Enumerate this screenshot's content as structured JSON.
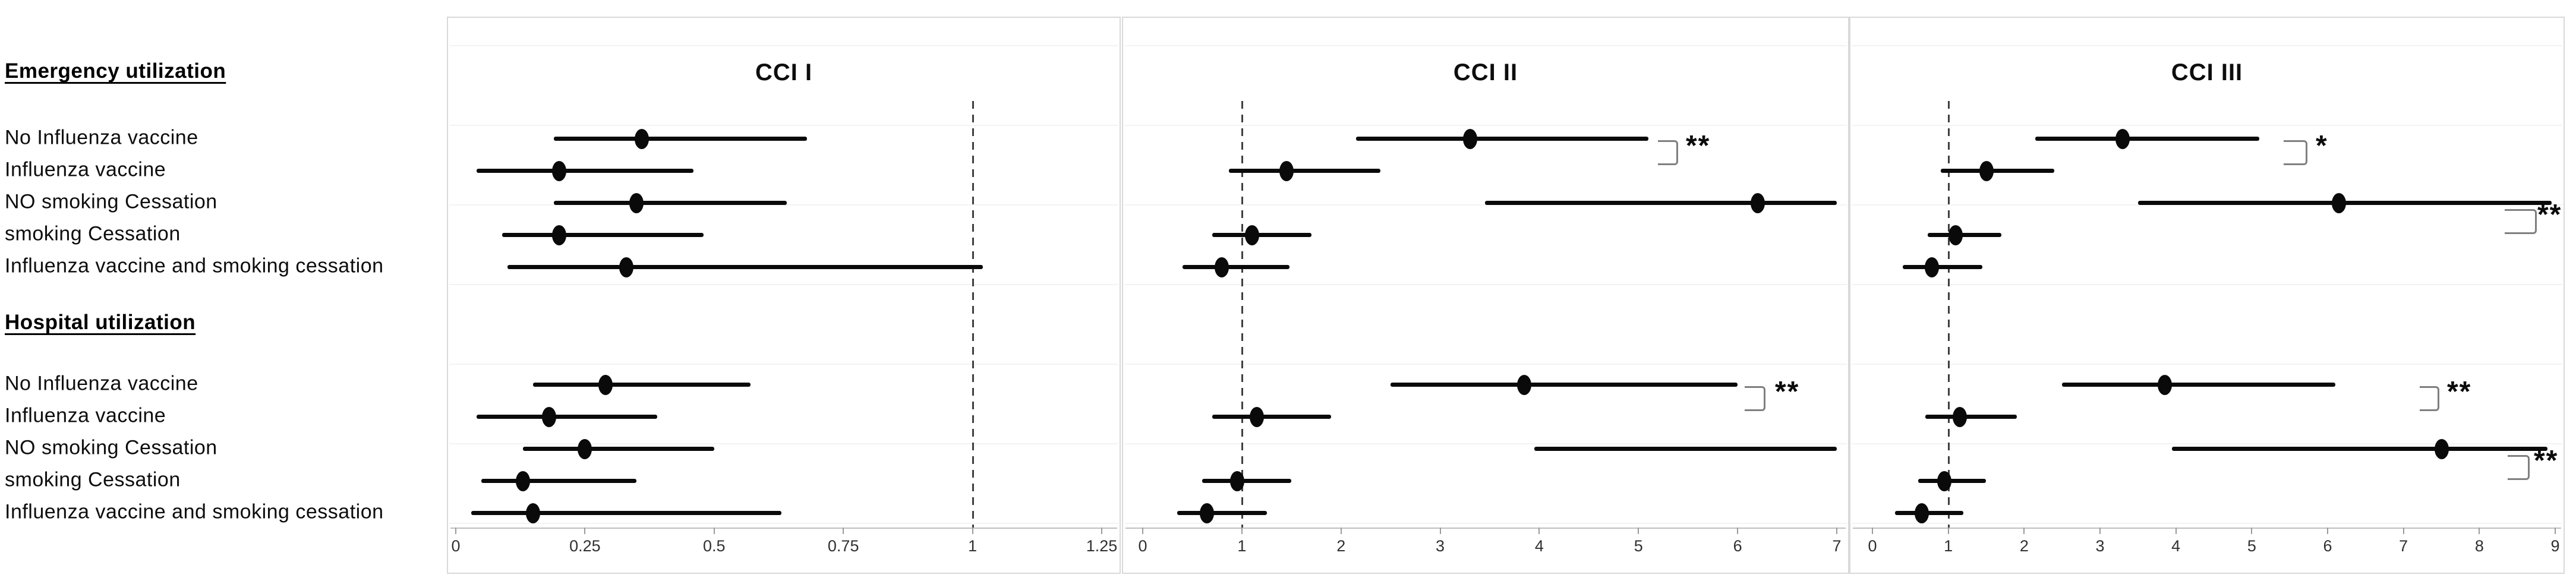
{
  "figure": {
    "section_headers": {
      "emergency": "Emergency utilization",
      "hospital": "Hospital utilization"
    }
  },
  "chart_data": [
    {
      "type": "forest",
      "title": "CCI I",
      "xlabel": "",
      "xlim": [
        0,
        1.25
      ],
      "reference_line": 1,
      "ticks": [
        {
          "v": 0,
          "label": "0"
        },
        {
          "v": 0.25,
          "label": "0.25"
        },
        {
          "v": 0.5,
          "label": "0.5"
        },
        {
          "v": 0.75,
          "label": "0.75"
        },
        {
          "v": 1,
          "label": "1"
        },
        {
          "v": 1.25,
          "label": "1.25"
        }
      ],
      "sections": [
        {
          "name": "Emergency utilization",
          "rows": [
            {
              "label": "No Influenza vaccine",
              "est": 0.36,
              "lo": 0.19,
              "hi": 0.68,
              "sig": null
            },
            {
              "label": "Influenza vaccine",
              "est": 0.2,
              "lo": 0.04,
              "hi": 0.46,
              "sig": null
            },
            {
              "label": "NO smoking Cessation",
              "est": 0.35,
              "lo": 0.19,
              "hi": 0.64,
              "sig": null
            },
            {
              "label": "smoking Cessation",
              "est": 0.2,
              "lo": 0.09,
              "hi": 0.48,
              "sig": null
            },
            {
              "label": "Influenza vaccine and smoking cessation",
              "est": 0.33,
              "lo": 0.1,
              "hi": 1.02,
              "sig": null
            }
          ]
        },
        {
          "name": "Hospital utilization",
          "rows": [
            {
              "label": "No Influenza vaccine",
              "est": 0.29,
              "lo": 0.15,
              "hi": 0.57,
              "sig": null
            },
            {
              "label": "Influenza vaccine",
              "est": 0.18,
              "lo": 0.04,
              "hi": 0.39,
              "sig": null
            },
            {
              "label": "NO smoking Cessation",
              "est": 0.25,
              "lo": 0.13,
              "hi": 0.5,
              "sig": null
            },
            {
              "label": "smoking Cessation",
              "est": 0.13,
              "lo": 0.05,
              "hi": 0.35,
              "sig": null
            },
            {
              "label": "Influenza vaccine and smoking cessation",
              "est": 0.15,
              "lo": 0.03,
              "hi": 0.63,
              "sig": null
            }
          ]
        }
      ]
    },
    {
      "type": "forest",
      "title": "CCI II",
      "xlabel": "",
      "xlim": [
        0,
        7
      ],
      "reference_line": 1,
      "ticks": [
        {
          "v": 0,
          "label": "0"
        },
        {
          "v": 1,
          "label": "1"
        },
        {
          "v": 2,
          "label": "2"
        },
        {
          "v": 3,
          "label": "3"
        },
        {
          "v": 4,
          "label": "4"
        },
        {
          "v": 5,
          "label": "5"
        },
        {
          "v": 6,
          "label": "6"
        },
        {
          "v": 7,
          "label": "7"
        }
      ],
      "sections": [
        {
          "name": "Emergency utilization",
          "rows": [
            {
              "label": "No Influenza vaccine",
              "est": 3.3,
              "lo": 2.15,
              "hi": 5.1,
              "sig": {
                "marker": "**",
                "bracket": "next-row"
              }
            },
            {
              "label": "Influenza vaccine",
              "est": 1.45,
              "lo": 0.87,
              "hi": 2.4,
              "sig": null
            },
            {
              "label": "NO smoking Cessation",
              "est": 6.2,
              "lo": 3.45,
              "hi": 7.0,
              "sig": null
            },
            {
              "label": "smoking Cessation",
              "est": 1.1,
              "lo": 0.7,
              "hi": 1.7,
              "sig": null
            },
            {
              "label": "Influenza vaccine and smoking cessation",
              "est": 0.8,
              "lo": 0.4,
              "hi": 1.48,
              "sig": null
            }
          ]
        },
        {
          "name": "Hospital utilization",
          "rows": [
            {
              "label": "No Influenza vaccine",
              "est": 3.85,
              "lo": 2.5,
              "hi": 6.0,
              "sig": {
                "marker": "**",
                "bracket": "next-row"
              }
            },
            {
              "label": "Influenza vaccine",
              "est": 1.15,
              "lo": 0.7,
              "hi": 1.9,
              "sig": null
            },
            {
              "label": "NO smoking Cessation",
              "est": null,
              "lo": 3.95,
              "hi": 7.0,
              "sig": null
            },
            {
              "label": "smoking Cessation",
              "est": 0.95,
              "lo": 0.6,
              "hi": 1.5,
              "sig": null
            },
            {
              "label": "Influenza vaccine and smoking cessation",
              "est": 0.65,
              "lo": 0.35,
              "hi": 1.25,
              "sig": null
            }
          ]
        }
      ]
    },
    {
      "type": "forest",
      "title": "CCI III",
      "xlabel": "",
      "xlim": [
        0,
        9
      ],
      "reference_line": 1,
      "ticks": [
        {
          "v": 0,
          "label": "0"
        },
        {
          "v": 1,
          "label": "1"
        },
        {
          "v": 2,
          "label": "2"
        },
        {
          "v": 3,
          "label": "3"
        },
        {
          "v": 4,
          "label": "4"
        },
        {
          "v": 5,
          "label": "5"
        },
        {
          "v": 6,
          "label": "6"
        },
        {
          "v": 7,
          "label": "7"
        },
        {
          "v": 8,
          "label": "8"
        },
        {
          "v": 9,
          "label": "9"
        }
      ],
      "sections": [
        {
          "name": "Emergency utilization",
          "rows": [
            {
              "label": "No Influenza vaccine",
              "est": 3.3,
              "lo": 2.15,
              "hi": 5.1,
              "sig": {
                "marker": "*",
                "bracket": "next-row"
              }
            },
            {
              "label": "Influenza vaccine",
              "est": 1.5,
              "lo": 0.9,
              "hi": 2.4,
              "sig": null
            },
            {
              "label": "NO smoking Cessation",
              "est": 6.15,
              "lo": 3.5,
              "hi": 8.95,
              "sig": {
                "marker": "**",
                "bracket": "below"
              }
            },
            {
              "label": "smoking Cessation",
              "est": 1.1,
              "lo": 0.73,
              "hi": 1.7,
              "sig": null
            },
            {
              "label": "Influenza vaccine and smoking cessation",
              "est": 0.78,
              "lo": 0.4,
              "hi": 1.45,
              "sig": null
            }
          ]
        },
        {
          "name": "Hospital utilization",
          "rows": [
            {
              "label": "No Influenza vaccine",
              "est": 3.85,
              "lo": 2.5,
              "hi": 6.1,
              "sig": {
                "marker": "**",
                "bracket": "next-row"
              }
            },
            {
              "label": "Influenza vaccine",
              "est": 1.15,
              "lo": 0.7,
              "hi": 1.9,
              "sig": null
            },
            {
              "label": "NO smoking Cessation",
              "est": 7.5,
              "lo": 3.95,
              "hi": 8.9,
              "sig": {
                "marker": "**",
                "bracket": "below"
              }
            },
            {
              "label": "smoking Cessation",
              "est": 0.95,
              "lo": 0.6,
              "hi": 1.5,
              "sig": null
            },
            {
              "label": "Influenza vaccine and smoking cessation",
              "est": 0.65,
              "lo": 0.3,
              "hi": 1.2,
              "sig": null
            }
          ]
        }
      ]
    }
  ]
}
